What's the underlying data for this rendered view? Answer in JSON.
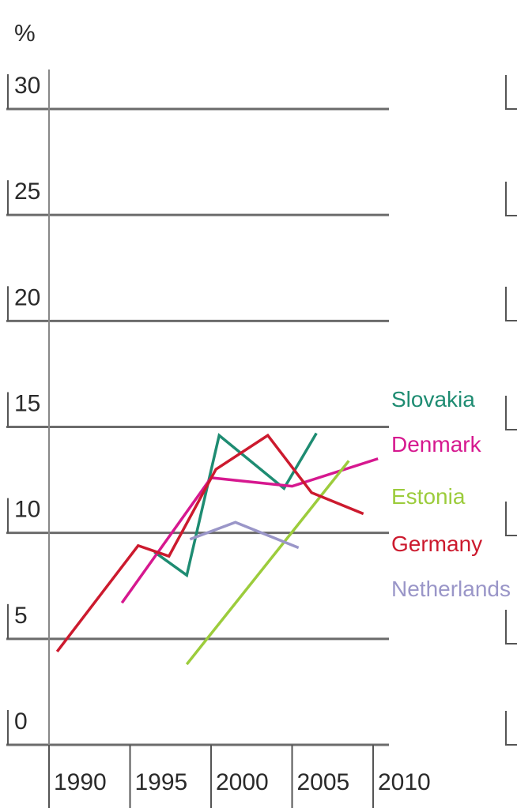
{
  "chart_data": {
    "type": "line",
    "y_axis_label": "%",
    "xlim": [
      1990,
      2010
    ],
    "xticks": [
      1990,
      1995,
      2000,
      2005,
      2010
    ],
    "ylim": [
      0,
      30
    ],
    "yticks": [
      0,
      5,
      10,
      15,
      20,
      25,
      30
    ],
    "grid": true,
    "series": [
      {
        "name": "Slovakia",
        "color": "#1e8c72",
        "x": [
          1996.5,
          1998.5,
          2000.5,
          2004.5,
          2006.5
        ],
        "values": [
          9.1,
          8.0,
          14.6,
          12.1,
          14.7
        ]
      },
      {
        "name": "Denmark",
        "color": "#d6188f",
        "x": [
          1994.5,
          2000,
          2005,
          2010.3
        ],
        "values": [
          6.7,
          12.6,
          12.2,
          13.5
        ]
      },
      {
        "name": "Estonia",
        "color": "#9ccc3c",
        "x": [
          1998.5,
          2008.5
        ],
        "values": [
          3.8,
          13.4
        ]
      },
      {
        "name": "Germany",
        "color": "#cc1a2e",
        "x": [
          1990.5,
          1995.5,
          1997.4,
          2000.3,
          2003.5,
          2006.2,
          2009.4
        ],
        "values": [
          4.4,
          9.4,
          8.9,
          13.0,
          14.6,
          11.9,
          10.9
        ]
      },
      {
        "name": "Netherlands",
        "color": "#9a96c8",
        "x": [
          1998.7,
          2001.5,
          2005.4
        ],
        "values": [
          9.7,
          10.5,
          9.3
        ]
      }
    ]
  }
}
